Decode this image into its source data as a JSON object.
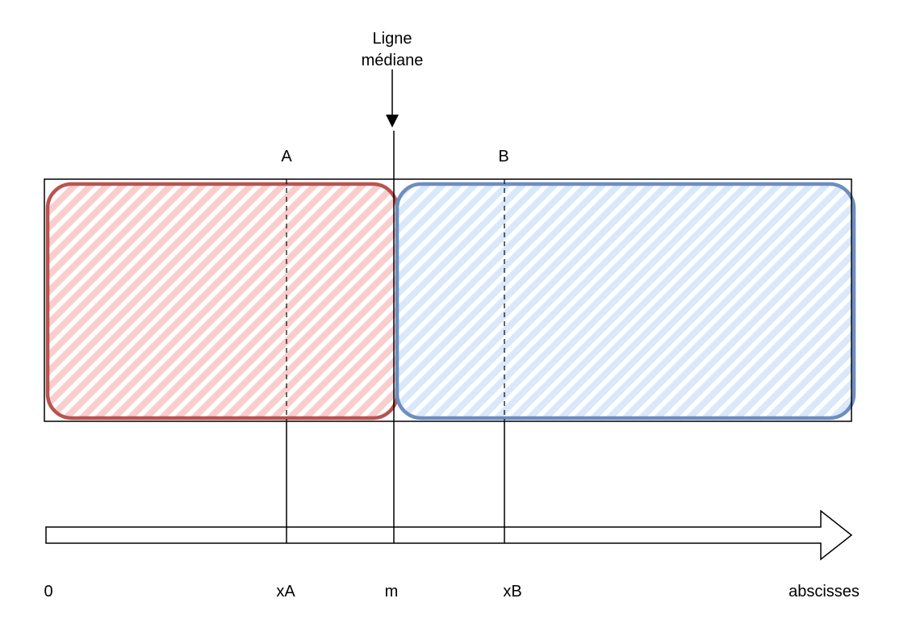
{
  "median_label_line1": "Ligne",
  "median_label_line2": "médiane",
  "region_a_label": "A",
  "region_b_label": "B",
  "axis": {
    "origin_label": "0",
    "xa_label": "xA",
    "m_label": "m",
    "xb_label": "xB",
    "axis_label": "abscisses"
  },
  "colors": {
    "region_a_stroke": "#b85450",
    "region_a_fill": "#f8cecc",
    "region_b_stroke": "#6c8ebf",
    "region_b_fill": "#dae8fc"
  }
}
